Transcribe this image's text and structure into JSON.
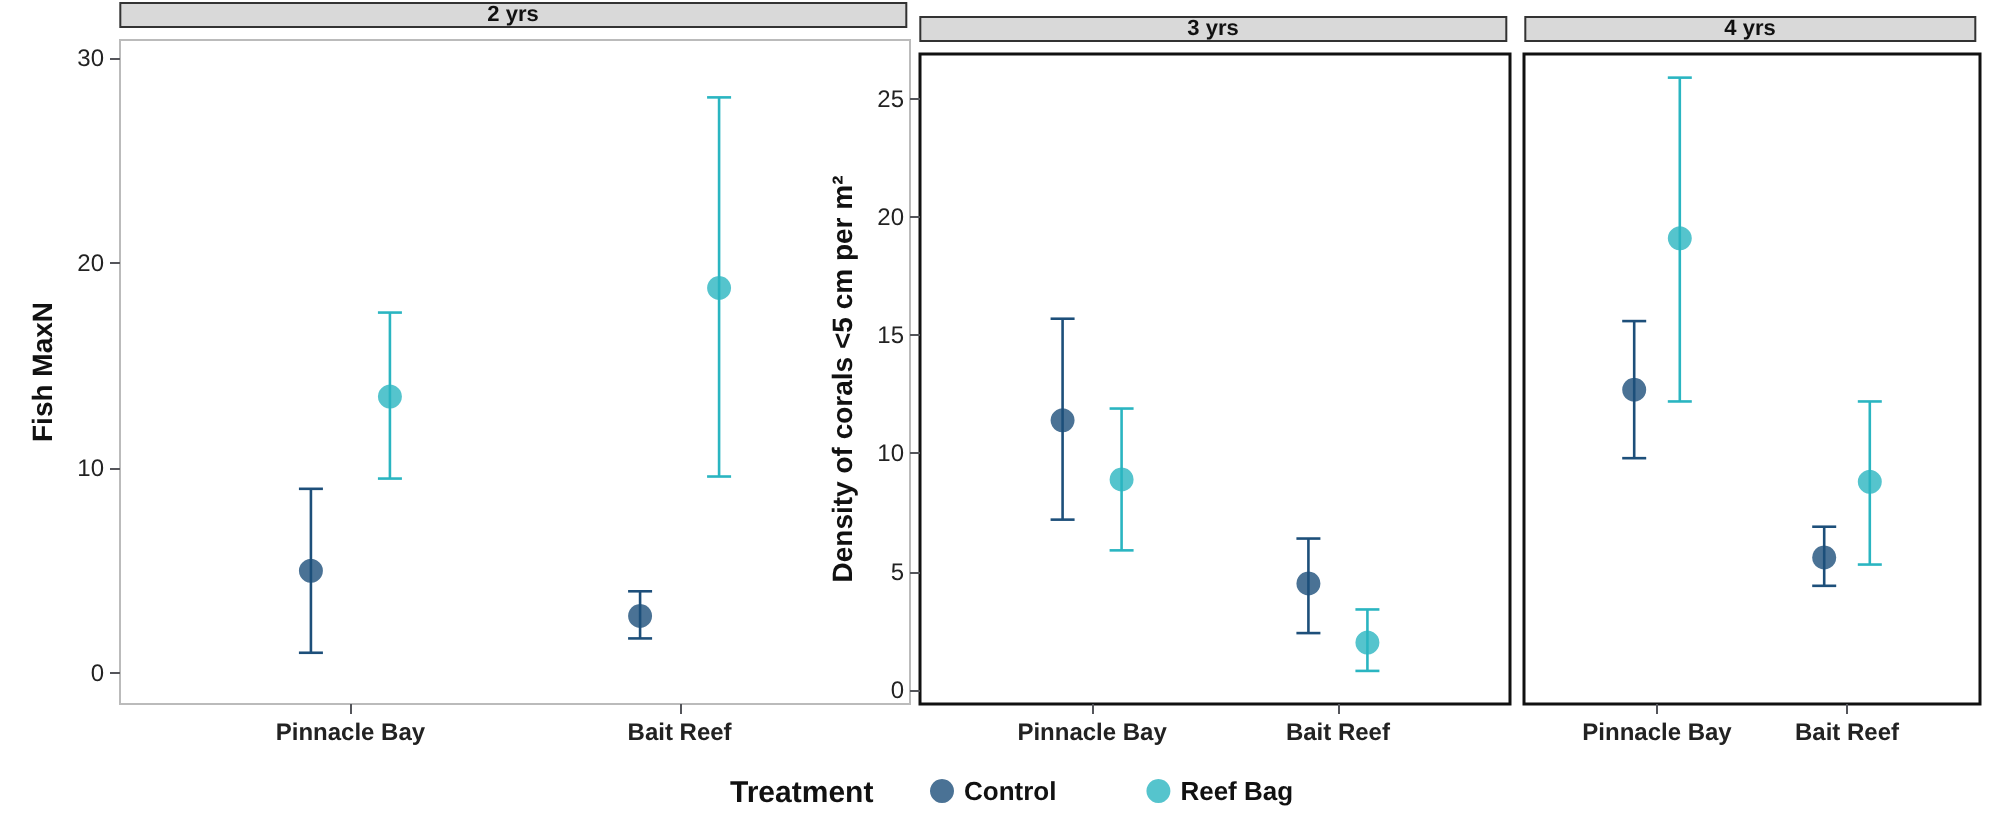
{
  "chart_data": [
    {
      "type": "scatter",
      "title": "2 yrs",
      "ylabel": "Fish MaxN",
      "categories": [
        "Pinnacle Bay",
        "Bait Reef"
      ],
      "ylim": [
        -1.5,
        30.9
      ],
      "yticks": [
        0,
        10,
        20,
        30
      ],
      "marker": "circle",
      "grid": false,
      "series": [
        {
          "color": "#1d4f7a",
          "values": [
            5,
            2.8
          ],
          "errors": [
            [
              1,
              9
            ],
            [
              1.7,
              4
            ]
          ]
        },
        {
          "color": "#2ab5c1",
          "values": [
            13.5,
            18.8
          ],
          "errors": [
            [
              9.5,
              17.6
            ],
            [
              9.6,
              28.1
            ]
          ]
        }
      ]
    },
    {
      "type": "scatter",
      "title": "3 yrs",
      "ylabel": "Density of corals <5 cm per m²",
      "categories": [
        "Pinnacle Bay",
        "Bait Reef"
      ],
      "ylim": [
        -0.6,
        26.9
      ],
      "yticks": [
        0,
        5,
        10,
        15,
        20,
        25
      ],
      "marker": "circle",
      "grid": false,
      "legend": "bottom",
      "legend_title": "Treatment",
      "series": [
        {
          "name": "Control",
          "color": "#1d4f7a",
          "values": [
            11.4,
            4.5
          ],
          "errors": [
            [
              7.2,
              15.7
            ],
            [
              2.4,
              6.4
            ]
          ]
        },
        {
          "name": "Reef Bag",
          "color": "#2ab5c1",
          "values": [
            8.9,
            2
          ],
          "errors": [
            [
              5.9,
              11.9
            ],
            [
              0.8,
              3.4
            ]
          ]
        }
      ]
    },
    {
      "type": "scatter",
      "title": "4 yrs",
      "categories": [
        "Pinnacle Bay",
        "Bait Reef"
      ],
      "ylim": [
        -0.6,
        26.9
      ],
      "yticks": [
        0,
        5,
        10,
        15,
        20,
        25
      ],
      "marker": "circle",
      "grid": false,
      "tick_labels": "x",
      "series": [
        {
          "color": "#1d4f7a",
          "values": [
            12.7,
            5.6
          ],
          "errors": [
            [
              9.8,
              15.6
            ],
            [
              4.4,
              6.9
            ]
          ]
        },
        {
          "color": "#2ab5c1",
          "values": [
            19.1,
            8.8
          ],
          "errors": [
            [
              12.2,
              25.9
            ],
            [
              5.3,
              12.2
            ]
          ]
        }
      ]
    }
  ]
}
